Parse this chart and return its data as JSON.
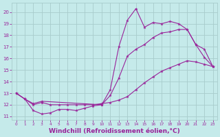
{
  "bg_color": "#c5eaea",
  "grid_color": "#a8cccc",
  "line_color": "#992299",
  "xlabel": "Windchill (Refroidissement éolien,°C)",
  "xlabel_fontsize": 6.5,
  "ylabel_ticks": [
    11,
    12,
    13,
    14,
    15,
    16,
    17,
    18,
    19,
    20
  ],
  "xlim": [
    -0.5,
    23.5
  ],
  "ylim": [
    10.7,
    20.8
  ],
  "x_ticks": [
    0,
    1,
    2,
    3,
    4,
    5,
    6,
    7,
    8,
    9,
    10,
    11,
    12,
    13,
    14,
    15,
    16,
    17,
    18,
    19,
    20,
    21,
    22,
    23
  ],
  "line1_x": [
    0,
    1,
    2,
    3,
    4,
    5,
    6,
    7,
    8,
    9,
    10,
    11,
    12,
    13,
    14,
    15,
    16,
    17,
    18,
    19,
    20,
    21,
    22,
    23
  ],
  "line1_y": [
    13.0,
    12.5,
    11.5,
    11.2,
    11.3,
    11.6,
    11.6,
    11.5,
    11.7,
    11.9,
    12.0,
    13.3,
    17.0,
    19.3,
    20.3,
    18.7,
    19.1,
    19.0,
    19.2,
    19.0,
    18.5,
    17.2,
    16.1,
    15.3
  ],
  "line2_x": [
    0,
    1,
    2,
    3,
    10,
    11,
    12,
    13,
    14,
    15,
    16,
    17,
    18,
    19,
    20,
    21,
    22,
    23
  ],
  "line2_y": [
    13.0,
    12.5,
    12.1,
    12.3,
    12.0,
    12.8,
    14.3,
    16.2,
    16.8,
    17.2,
    17.8,
    18.2,
    18.3,
    18.5,
    18.5,
    17.2,
    16.8,
    15.3
  ],
  "line3_x": [
    0,
    1,
    2,
    3,
    4,
    5,
    6,
    7,
    8,
    9,
    10,
    11,
    12,
    13,
    14,
    15,
    16,
    17,
    18,
    19,
    20,
    21,
    22,
    23
  ],
  "line3_y": [
    13.0,
    12.5,
    12.0,
    12.2,
    12.0,
    12.0,
    12.0,
    12.0,
    12.0,
    12.0,
    12.1,
    12.2,
    12.4,
    12.7,
    13.3,
    13.9,
    14.4,
    14.9,
    15.2,
    15.5,
    15.8,
    15.7,
    15.5,
    15.3
  ]
}
